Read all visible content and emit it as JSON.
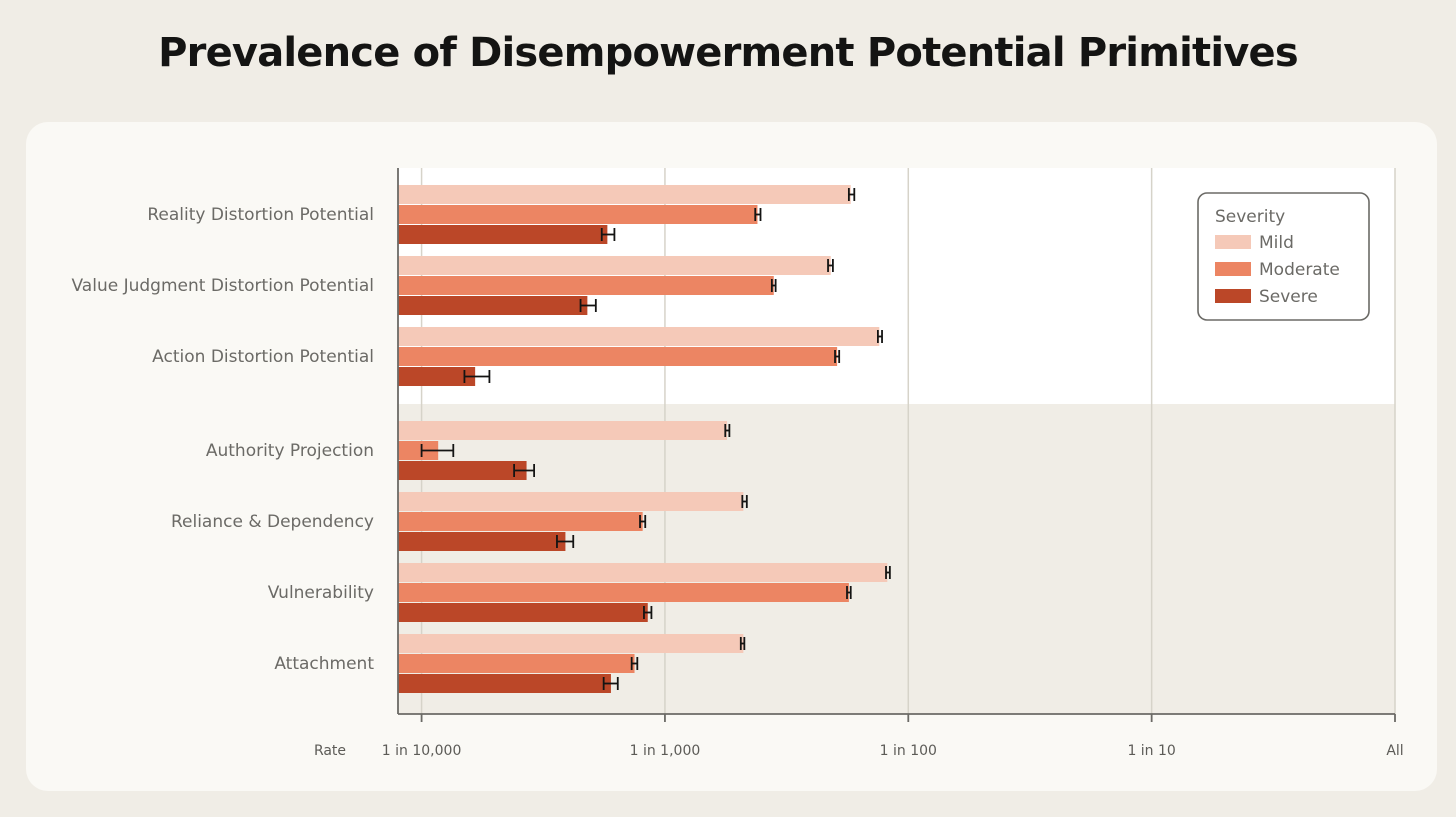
{
  "title": "Prevalence of Disempowerment Potential Primitives",
  "axis": {
    "rate_label": "Rate",
    "scale": "log",
    "ticks": [
      {
        "value": 0.0001,
        "label": "1 in 10,000"
      },
      {
        "value": 0.001,
        "label": "1 in 1,000"
      },
      {
        "value": 0.01,
        "label": "1 in 100"
      },
      {
        "value": 0.1,
        "label": "1 in 10"
      },
      {
        "value": 1,
        "label": "All"
      }
    ]
  },
  "legend": {
    "title": "Severity",
    "placement": "top-right",
    "items": [
      {
        "label": "Mild",
        "color": "#f5c9b8"
      },
      {
        "label": "Moderate",
        "color": "#ec8563"
      },
      {
        "label": "Severe",
        "color": "#bb4728"
      }
    ]
  },
  "colors": {
    "top_group_background": "#ffffff",
    "bottom_group_background": "#f0ede6",
    "axis_line": "#6b6a66",
    "grid_line": "#d6d3c9",
    "error_bar": "#141413"
  },
  "chart_data": {
    "type": "bar",
    "orientation": "horizontal",
    "title": "Prevalence of Disempowerment Potential Primitives",
    "xlabel": "Rate",
    "xscale": "log",
    "xlim": [
      8e-05,
      1
    ],
    "grid": true,
    "legend_position": "top-right",
    "categories": [
      "Reality Distortion Potential",
      "Value Judgment Distortion Potential",
      "Action Distortion Potential",
      "Authority Projection",
      "Reliance & Dependency",
      "Vulnerability",
      "Attachment"
    ],
    "series": [
      {
        "name": "Mild",
        "values": [
          0.0058,
          0.0048,
          0.0076,
          0.0018,
          0.0021,
          0.0082,
          0.0021
        ],
        "error_low": [
          0.0057,
          0.00468,
          0.0075,
          0.00177,
          0.00208,
          0.0081,
          0.00205
        ],
        "error_high": [
          0.006,
          0.0049,
          0.0078,
          0.00184,
          0.00217,
          0.0084,
          0.00212
        ]
      },
      {
        "name": "Moderate",
        "values": [
          0.0024,
          0.0028,
          0.0051,
          0.000117,
          0.00081,
          0.0057,
          0.00075
        ],
        "error_low": [
          0.00235,
          0.00275,
          0.005,
          0.0001,
          0.00079,
          0.0056,
          0.00073
        ],
        "error_high": [
          0.00247,
          0.00285,
          0.0052,
          0.000135,
          0.00083,
          0.0058,
          0.00077
        ]
      },
      {
        "name": "Severe",
        "values": [
          0.00058,
          0.00048,
          0.000166,
          0.00027,
          0.00039,
          0.00085,
          0.0006
        ],
        "error_low": [
          0.00055,
          0.00045,
          0.00015,
          0.00024,
          0.00036,
          0.00082,
          0.00056
        ],
        "error_high": [
          0.00062,
          0.00052,
          0.00019,
          0.00029,
          0.00042,
          0.00088,
          0.00064
        ]
      }
    ]
  }
}
